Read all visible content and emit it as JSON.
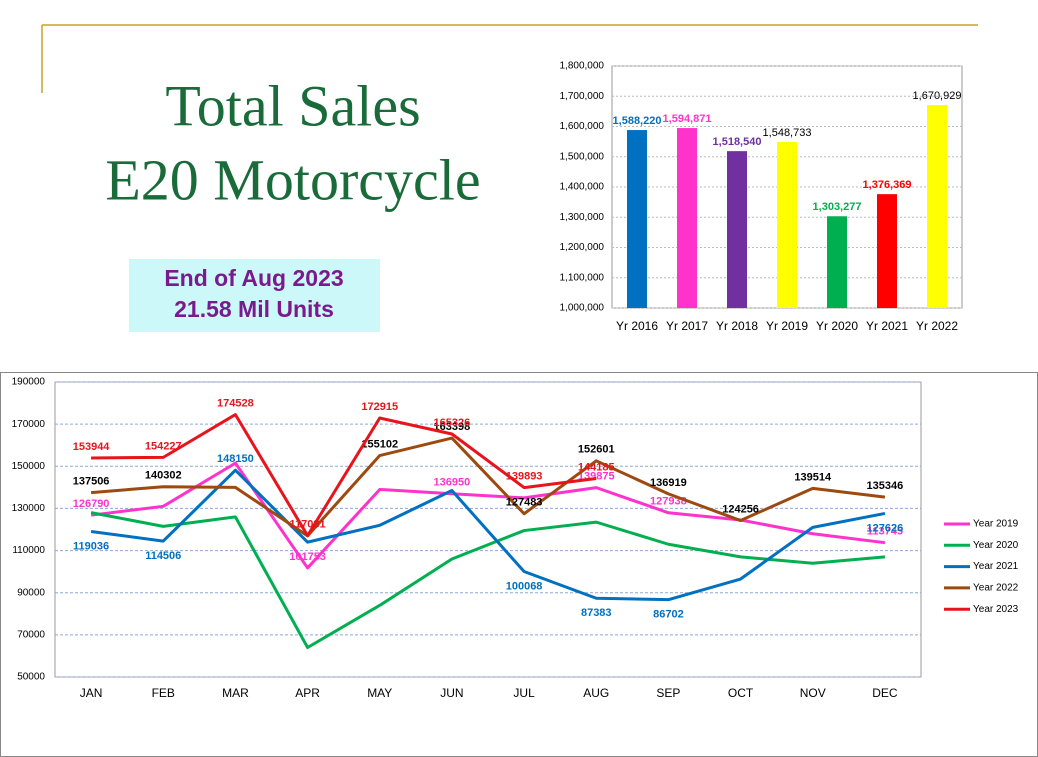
{
  "title_lines": [
    "Total Sales",
    "E20 Motorcycle"
  ],
  "note_lines": [
    "End of Aug 2023",
    "21.58 Mil Units"
  ],
  "chart_data": [
    {
      "type": "bar",
      "categories": [
        "Yr 2016",
        "Yr 2017",
        "Yr 2018",
        "Yr 2019",
        "Yr 2020",
        "Yr 2021",
        "Yr 2022"
      ],
      "values": [
        1588220,
        1594871,
        1518540,
        1548733,
        1303277,
        1376369,
        1670929
      ],
      "value_labels": [
        "1,588,220",
        "1,594,871",
        "1,518,540",
        "1,548,733",
        "1,303,277",
        "1,376,369",
        "1,670,929"
      ],
      "colors": [
        "#0070c0",
        "#ff33cc",
        "#7030a0",
        "#ffff00",
        "#00b050",
        "#ff0000",
        "#ffff00"
      ],
      "label_colors": [
        "#0070c0",
        "#ff33cc",
        "#7030a0",
        "#000000",
        "#00b050",
        "#ff0000",
        "#000000"
      ],
      "ylim": [
        1000000,
        1800000
      ],
      "yticks": [
        {
          "value": 1000000,
          "label": "1,000,000"
        },
        {
          "value": 1100000,
          "label": "1,100,000"
        },
        {
          "value": 1200000,
          "label": "1,200,000"
        },
        {
          "value": 1300000,
          "label": "1,300,000"
        },
        {
          "value": 1400000,
          "label": "1,400,000"
        },
        {
          "value": 1500000,
          "label": "1,500,000"
        },
        {
          "value": 1600000,
          "label": "1,600,000"
        },
        {
          "value": 1700000,
          "label": "1,700,000"
        },
        {
          "value": 1800000,
          "label": "1,800,000"
        }
      ],
      "grid": true
    },
    {
      "type": "line",
      "categories": [
        "JAN",
        "FEB",
        "MAR",
        "APR",
        "MAY",
        "JUN",
        "JUL",
        "AUG",
        "SEP",
        "OCT",
        "NOV",
        "DEC"
      ],
      "series": [
        {
          "name": "Year 2019",
          "color": "#ff33cc",
          "label_color": "#ff33cc",
          "values": [
            126790,
            131000,
            151500,
            101753,
            139000,
            136950,
            135000,
            139875,
            127938,
            124500,
            118000,
            113745
          ],
          "value_labels": [
            "126790",
            null,
            null,
            "101753",
            null,
            "136950",
            null,
            "139875",
            "127938",
            null,
            null,
            "113745"
          ]
        },
        {
          "name": "Year 2020",
          "color": "#00b050",
          "label_color": "#00b050",
          "values": [
            128000,
            121500,
            126000,
            64000,
            84000,
            106000,
            119500,
            123500,
            113000,
            107000,
            104000,
            107000
          ]
        },
        {
          "name": "Year 2021",
          "color": "#0070c0",
          "label_color": "#0070c0",
          "values": [
            119036,
            114506,
            148150,
            114000,
            122000,
            138500,
            100068,
            87383,
            86702,
            96500,
            121000,
            127626
          ],
          "value_labels": [
            "119036",
            "114506",
            "148150",
            null,
            null,
            null,
            "100068",
            "87383",
            "86702",
            null,
            null,
            "127626"
          ]
        },
        {
          "name": "Year 2022",
          "color": "#9c4a10",
          "label_color": "#000000",
          "values": [
            137506,
            140302,
            140000,
            117000,
            155102,
            163398,
            127483,
            152601,
            136919,
            124256,
            139514,
            135346
          ],
          "value_labels": [
            "137506",
            "140302",
            null,
            null,
            "155102",
            "163398",
            "127483",
            "152601",
            "136919",
            "124256",
            "139514",
            "135346"
          ]
        },
        {
          "name": "Year 2023",
          "color": "#e8141b",
          "label_color": "#e8141b",
          "values": [
            153944,
            154227,
            174528,
            117081,
            172915,
            165326,
            139893,
            144185,
            null,
            null,
            null,
            null
          ],
          "value_labels": [
            "153944",
            "154227",
            "174528",
            "117081",
            "172915",
            "165326",
            "139893",
            "144185",
            null,
            null,
            null,
            null
          ]
        }
      ],
      "ylim": [
        50000,
        190000
      ],
      "yticks": [
        50000,
        70000,
        90000,
        110000,
        130000,
        150000,
        170000,
        190000
      ],
      "grid": true,
      "legend": "right"
    }
  ]
}
